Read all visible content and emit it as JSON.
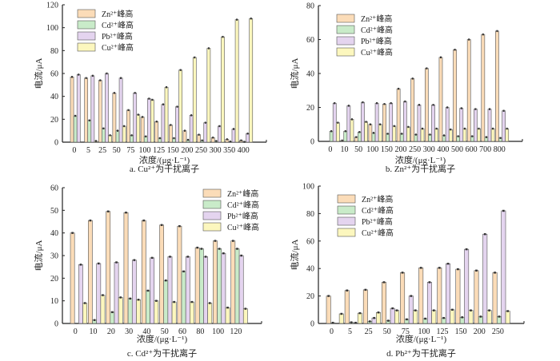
{
  "colors": {
    "Zn": "#fbdcb8",
    "Cd": "#c9ebc9",
    "Pb": "#e4d4ef",
    "Cu": "#fcf7be",
    "stroke": "#333333"
  },
  "chart_data": [
    {
      "type": "bar",
      "caption": "a. Cu²⁺为干扰离子",
      "xlabel": "浓度/(μg·L⁻¹)",
      "ylabel": "电流/μA",
      "ylim": [
        0,
        120
      ],
      "yticks": [
        0,
        20,
        40,
        60,
        80,
        100,
        120
      ],
      "legend_position": "top-left",
      "categories": [
        "0",
        "5",
        "25",
        "50",
        "75",
        "100",
        "125",
        "150",
        "200",
        "250",
        "300",
        "350",
        "400"
      ],
      "series": [
        {
          "name": "Zn²⁺峰高",
          "key": "Zn",
          "values": [
            57,
            56,
            54,
            43,
            28,
            22,
            18,
            15,
            10,
            6.5,
            4,
            2.5,
            1.5
          ]
        },
        {
          "name": "Cd²⁺峰高",
          "key": "Cd",
          "values": [
            23,
            19,
            12,
            10,
            6,
            5,
            3.5,
            3.5,
            2,
            1.5,
            1,
            0.5,
            0.3
          ]
        },
        {
          "name": "Pb²⁺峰高",
          "key": "Pb",
          "values": [
            59,
            58,
            60,
            56,
            43,
            38,
            33,
            31,
            23.5,
            17,
            14,
            11.5,
            7.5
          ]
        },
        {
          "name": "Cu²⁺峰高",
          "key": "Cu",
          "values": [
            0,
            1,
            6,
            14,
            24,
            37,
            48,
            63,
            74,
            82,
            92,
            107,
            108
          ]
        }
      ]
    },
    {
      "type": "bar",
      "caption": "b. Zn²⁺为干扰离子",
      "xlabel": "浓度/(μg·L⁻¹)",
      "ylabel": "电流/μA",
      "ylim": [
        0,
        80
      ],
      "yticks": [
        0,
        20,
        40,
        60,
        80
      ],
      "legend_position": "top-left",
      "categories": [
        "0",
        "10",
        "50",
        "100",
        "150",
        "200",
        "250",
        "300",
        "400",
        "500",
        "600",
        "700",
        "800"
      ],
      "series": [
        {
          "name": "Zn²⁺峰高",
          "key": "Zn",
          "values": [
            0,
            0.5,
            2.5,
            10,
            22,
            31,
            37,
            43,
            49.5,
            54,
            60,
            63,
            65
          ]
        },
        {
          "name": "Cd²⁺峰高",
          "key": "Cd",
          "values": [
            6,
            6,
            5.5,
            5,
            4.5,
            4.5,
            4,
            4,
            3.5,
            3,
            3,
            2.5,
            2
          ]
        },
        {
          "name": "Pb²⁺峰高",
          "key": "Pb",
          "values": [
            22.5,
            21,
            23,
            22.5,
            22.5,
            23.5,
            21.5,
            21.5,
            20,
            19.5,
            19,
            19,
            18
          ]
        },
        {
          "name": "Cu²⁺峰高",
          "key": "Cu",
          "values": [
            11,
            13,
            11.5,
            10,
            9,
            8.5,
            7.5,
            7.5,
            7,
            7.5,
            7.5,
            7.5,
            7.5
          ]
        }
      ]
    },
    {
      "type": "bar",
      "caption": "c. Cd²⁺为干扰离子",
      "xlabel": "浓度/(μg·L⁻¹)",
      "ylabel": "电流/μA",
      "ylim": [
        0,
        60
      ],
      "yticks": [
        0,
        10,
        20,
        30,
        40,
        50,
        60
      ],
      "legend_position": "top-right",
      "categories": [
        "0",
        "10",
        "20",
        "30",
        "40",
        "50",
        "60",
        "80",
        "100",
        "120"
      ],
      "series": [
        {
          "name": "Zn²⁺峰高",
          "key": "Zn",
          "values": [
            40,
            45.5,
            49.5,
            49,
            45.5,
            43.5,
            43,
            33.5,
            36.5,
            36.5
          ]
        },
        {
          "name": "Cd²⁺峰高",
          "key": "Cd",
          "values": [
            0,
            1.5,
            5,
            11,
            14.5,
            19,
            23,
            33,
            33,
            33
          ]
        },
        {
          "name": "Pb²⁺峰高",
          "key": "Pb",
          "values": [
            26,
            26.5,
            27,
            28,
            29,
            29.5,
            29.5,
            29.5,
            31,
            30
          ]
        },
        {
          "name": "Cu²⁺峰高",
          "key": "Cu",
          "values": [
            9,
            12.5,
            11.5,
            10.5,
            10,
            9.5,
            9.5,
            9,
            7,
            6.5
          ]
        }
      ]
    },
    {
      "type": "bar",
      "caption": "d. Pb²⁺为干扰离子",
      "xlabel": "浓度/(μg·L⁻¹)",
      "ylabel": "电流/μA",
      "ylim": [
        0,
        100
      ],
      "yticks": [
        0,
        20,
        40,
        60,
        80,
        100
      ],
      "legend_position": "top-left",
      "categories": [
        "0",
        "5",
        "25",
        "50",
        "75",
        "100",
        "125",
        "150",
        "200",
        "250"
      ],
      "series": [
        {
          "name": "Zn²⁺峰高",
          "key": "Zn",
          "values": [
            20,
            24,
            24.5,
            30,
            37,
            40.5,
            40.5,
            39.5,
            38.5,
            37
          ]
        },
        {
          "name": "Cd²⁺峰高",
          "key": "Cd",
          "values": [
            0.5,
            0.8,
            1.5,
            2,
            3,
            3.5,
            4,
            4.5,
            5,
            5
          ]
        },
        {
          "name": "Pb²⁺峰高",
          "key": "Pb",
          "values": [
            0,
            0.5,
            4,
            11,
            20,
            30,
            43.5,
            54,
            65,
            82
          ]
        },
        {
          "name": "Cu²⁺峰高",
          "key": "Cu",
          "values": [
            7,
            7.5,
            8,
            9.5,
            9.5,
            9.5,
            10,
            9.5,
            9.5,
            9
          ]
        }
      ]
    }
  ]
}
